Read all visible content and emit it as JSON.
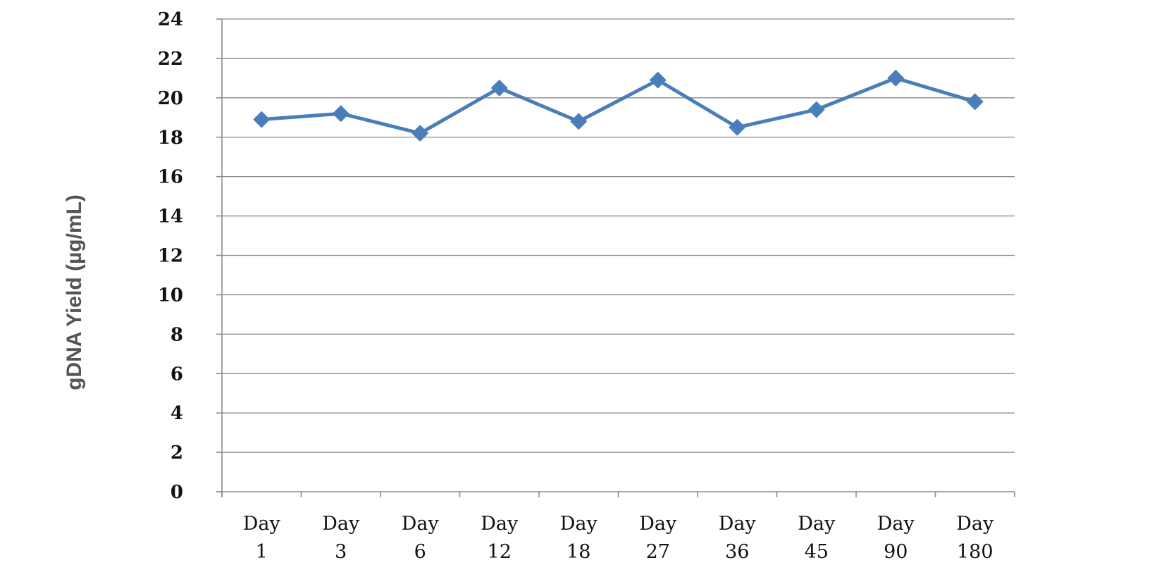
{
  "chart_data": {
    "type": "line",
    "categories": [
      {
        "line1": "Day",
        "line2": "1"
      },
      {
        "line1": "Day",
        "line2": "3"
      },
      {
        "line1": "Day",
        "line2": "6"
      },
      {
        "line1": "Day",
        "line2": "12"
      },
      {
        "line1": "Day",
        "line2": "18"
      },
      {
        "line1": "Day",
        "line2": "27"
      },
      {
        "line1": "Day",
        "line2": "36"
      },
      {
        "line1": "Day",
        "line2": "45"
      },
      {
        "line1": "Day",
        "line2": "90"
      },
      {
        "line1": "Day",
        "line2": "180"
      }
    ],
    "series": [
      {
        "values": [
          18.9,
          19.2,
          18.2,
          20.5,
          18.8,
          20.9,
          18.5,
          19.4,
          21.0,
          19.8
        ],
        "color": "#4a7ebb"
      }
    ],
    "ylabel": "gDNA Yield (µg/mL)",
    "ylim": [
      0,
      24
    ],
    "yticks": [
      "0",
      "2",
      "4",
      "6",
      "8",
      "10",
      "12",
      "14",
      "16",
      "18",
      "20",
      "22",
      "24"
    ],
    "grid": true,
    "legend": false
  }
}
